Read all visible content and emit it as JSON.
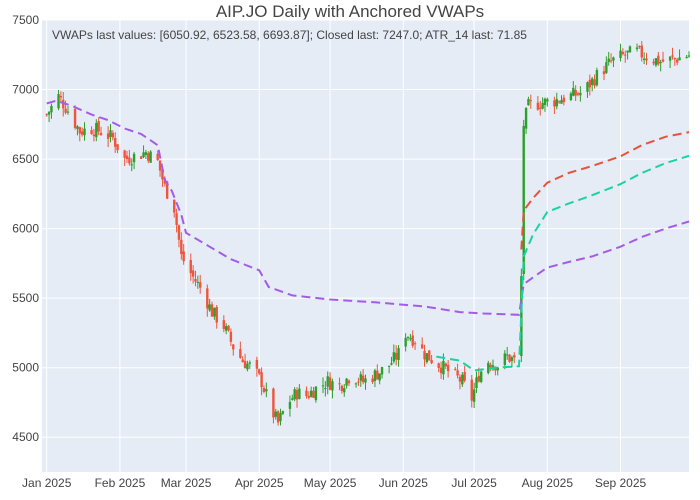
{
  "chart_data": {
    "type": "candlestick",
    "title": "AIP.JO Daily with Anchored VWAPs",
    "annotation": "VWAPs last values: [6050.92, 6523.58, 6693.87]; Closed last: 7247.0; ATR_14 last: 71.85",
    "xlabel": "",
    "ylabel": "",
    "ylim": [
      4250,
      7500
    ],
    "xlim": [
      "2024-12-30",
      "2025-09-30"
    ],
    "grid": true,
    "legend": "none",
    "y_ticks": [
      4500,
      5000,
      5500,
      6000,
      6500,
      7000,
      7500
    ],
    "x_ticks": [
      {
        "date": "2025-01-01",
        "label": "Jan 2025"
      },
      {
        "date": "2025-02-01",
        "label": "Feb 2025"
      },
      {
        "date": "2025-03-01",
        "label": "Mar 2025"
      },
      {
        "date": "2025-04-01",
        "label": "Apr 2025"
      },
      {
        "date": "2025-05-01",
        "label": "May 2025"
      },
      {
        "date": "2025-06-01",
        "label": "Jun 2025"
      },
      {
        "date": "2025-07-01",
        "label": "Jul 2025"
      },
      {
        "date": "2025-08-01",
        "label": "Aug 2025"
      },
      {
        "date": "2025-09-01",
        "label": "Sep 2025"
      }
    ],
    "colors": {
      "plot_bg": "#e5ecf6",
      "grid": "#ffffff",
      "increasing": "#2ca02c",
      "decreasing": "#ef553b",
      "vwap_1": "#a35ce8",
      "vwap_2": "#19d3a2",
      "vwap_3": "#e4543c"
    },
    "closes": [
      [
        "2025-01-01",
        6820
      ],
      [
        "2025-01-06",
        6950
      ],
      [
        "2025-01-10",
        6850
      ],
      [
        "2025-01-15",
        6700
      ],
      [
        "2025-01-20",
        6720
      ],
      [
        "2025-01-24",
        6700
      ],
      [
        "2025-01-29",
        6650
      ],
      [
        "2025-02-03",
        6500
      ],
      [
        "2025-02-07",
        6520
      ],
      [
        "2025-02-12",
        6550
      ],
      [
        "2025-02-17",
        6480
      ],
      [
        "2025-02-20",
        6300
      ],
      [
        "2025-02-24",
        6150
      ],
      [
        "2025-02-27",
        5800
      ],
      [
        "2025-03-04",
        5650
      ],
      [
        "2025-03-08",
        5550
      ],
      [
        "2025-03-12",
        5400
      ],
      [
        "2025-03-17",
        5300
      ],
      [
        "2025-03-21",
        5150
      ],
      [
        "2025-03-25",
        5050
      ],
      [
        "2025-03-29",
        5000
      ],
      [
        "2025-04-02",
        4900
      ],
      [
        "2025-04-06",
        4700
      ],
      [
        "2025-04-09",
        4600
      ],
      [
        "2025-04-13",
        4750
      ],
      [
        "2025-04-17",
        4820
      ],
      [
        "2025-04-21",
        4800
      ],
      [
        "2025-04-25",
        4850
      ],
      [
        "2025-04-30",
        4900
      ],
      [
        "2025-05-05",
        4870
      ],
      [
        "2025-05-10",
        4950
      ],
      [
        "2025-05-15",
        4900
      ],
      [
        "2025-05-20",
        4950
      ],
      [
        "2025-05-25",
        5000
      ],
      [
        "2025-05-30",
        5100
      ],
      [
        "2025-06-02",
        5250
      ],
      [
        "2025-06-06",
        5200
      ],
      [
        "2025-06-10",
        5100
      ],
      [
        "2025-06-14",
        5050
      ],
      [
        "2025-06-18",
        5000
      ],
      [
        "2025-06-22",
        4950
      ],
      [
        "2025-06-26",
        4900
      ],
      [
        "2025-06-30",
        4780
      ],
      [
        "2025-07-03",
        4950
      ],
      [
        "2025-07-07",
        5050
      ],
      [
        "2025-07-11",
        5020
      ],
      [
        "2025-07-15",
        5080
      ],
      [
        "2025-07-18",
        5050
      ],
      [
        "2025-07-21",
        5650
      ],
      [
        "2025-07-22",
        6750
      ],
      [
        "2025-07-24",
        6880
      ],
      [
        "2025-07-28",
        6900
      ],
      [
        "2025-08-04",
        6920
      ],
      [
        "2025-08-10",
        6950
      ],
      [
        "2025-08-16",
        6980
      ],
      [
        "2025-08-22",
        7100
      ],
      [
        "2025-08-28",
        7200
      ],
      [
        "2025-09-03",
        7250
      ],
      [
        "2025-09-08",
        7270
      ],
      [
        "2025-09-13",
        7230
      ],
      [
        "2025-09-18",
        7200
      ],
      [
        "2025-09-24",
        7220
      ],
      [
        "2025-09-30",
        7247
      ]
    ],
    "series": [
      {
        "type": "line",
        "values": [
          [
            "2025-01-01",
            6900
          ],
          [
            "2025-01-05",
            6920
          ],
          [
            "2025-01-12",
            6880
          ],
          [
            "2025-01-20",
            6820
          ],
          [
            "2025-01-27",
            6780
          ],
          [
            "2025-02-03",
            6720
          ],
          [
            "2025-02-10",
            6680
          ],
          [
            "2025-02-17",
            6600
          ],
          [
            "2025-02-20",
            6350
          ],
          [
            "2025-02-23",
            6270
          ],
          [
            "2025-02-27",
            6100
          ],
          [
            "2025-03-01",
            5970
          ],
          [
            "2025-03-10",
            5880
          ],
          [
            "2025-03-20",
            5780
          ],
          [
            "2025-04-01",
            5700
          ],
          [
            "2025-04-05",
            5580
          ],
          [
            "2025-04-15",
            5520
          ],
          [
            "2025-05-01",
            5490
          ],
          [
            "2025-05-20",
            5470
          ],
          [
            "2025-06-10",
            5440
          ],
          [
            "2025-06-25",
            5400
          ],
          [
            "2025-07-05",
            5390
          ],
          [
            "2025-07-20",
            5380
          ],
          [
            "2025-07-22",
            5600
          ],
          [
            "2025-07-26",
            5650
          ],
          [
            "2025-08-01",
            5720
          ],
          [
            "2025-08-10",
            5760
          ],
          [
            "2025-08-20",
            5800
          ],
          [
            "2025-09-01",
            5870
          ],
          [
            "2025-09-10",
            5940
          ],
          [
            "2025-09-20",
            6000
          ],
          [
            "2025-09-30",
            6050.92
          ]
        ]
      },
      {
        "type": "line",
        "values": [
          [
            "2025-06-15",
            5080
          ],
          [
            "2025-06-25",
            5050
          ],
          [
            "2025-07-01",
            4980
          ],
          [
            "2025-07-10",
            5000
          ],
          [
            "2025-07-20",
            5010
          ],
          [
            "2025-07-22",
            5800
          ],
          [
            "2025-07-26",
            5960
          ],
          [
            "2025-08-01",
            6120
          ],
          [
            "2025-08-10",
            6180
          ],
          [
            "2025-08-20",
            6240
          ],
          [
            "2025-09-01",
            6320
          ],
          [
            "2025-09-10",
            6400
          ],
          [
            "2025-09-20",
            6470
          ],
          [
            "2025-09-30",
            6523.58
          ]
        ]
      },
      {
        "type": "line",
        "values": [
          [
            "2025-07-21",
            5850
          ],
          [
            "2025-07-22",
            6130
          ],
          [
            "2025-07-26",
            6220
          ],
          [
            "2025-08-01",
            6330
          ],
          [
            "2025-08-10",
            6400
          ],
          [
            "2025-08-20",
            6450
          ],
          [
            "2025-09-01",
            6520
          ],
          [
            "2025-09-10",
            6600
          ],
          [
            "2025-09-20",
            6660
          ],
          [
            "2025-09-30",
            6693.87
          ]
        ]
      }
    ]
  }
}
